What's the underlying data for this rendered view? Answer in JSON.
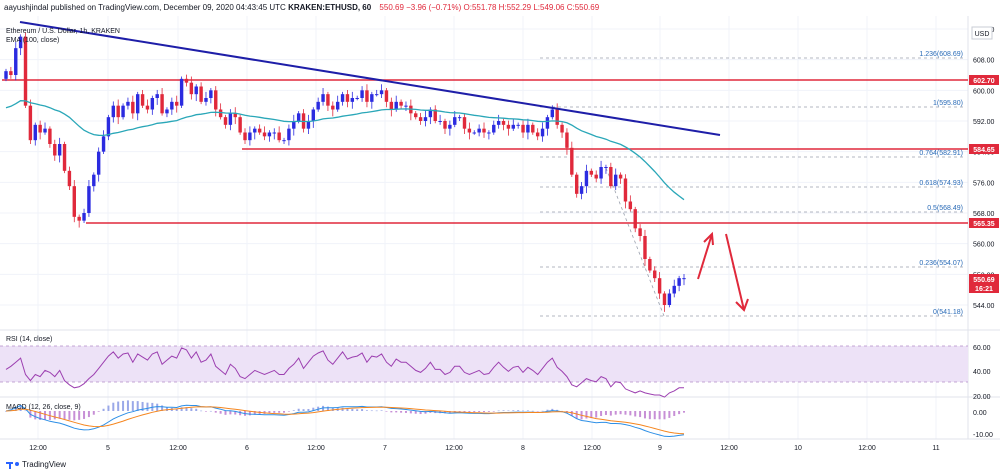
{
  "header": {
    "author": "aayushjindal",
    "published": "published on TradingView.com, December 09, 2020 04:43:45 UTC",
    "symbol": "KRAKEN:ETHUSD, 60",
    "price": "550.69",
    "change": "−3.96 (−0.71%)",
    "ohlc": "O:551.78 H:552.29 L:549.06 C:550.69"
  },
  "legend": {
    "title": "Ethereum / U.S. Dollar, 1h, KRAKEN",
    "ema": "EMA (100, close)"
  },
  "price_axis": {
    "currency": "USD",
    "ticks": [
      "616.00",
      "608.00",
      "600.00",
      "592.00",
      "584.00",
      "576.00",
      "568.00",
      "560.00",
      "552.00",
      "544.00"
    ],
    "tag_602": "602.70",
    "tag_584": "584.65",
    "tag_565": "565.35",
    "tag_last": "550.69",
    "tag_timer": "16:21"
  },
  "fib": {
    "l1236": "1.236(608.69)",
    "l1": "1(595.80)",
    "l0764": "0.764(582.91)",
    "l0618": "0.618(574.93)",
    "l05": "0.5(568.49)",
    "l0236": "0.236(554.07)",
    "l0": "0(541.18)"
  },
  "rsi": {
    "label": "RSI (14, close)",
    "ticks": [
      "60.00",
      "40.00",
      "20.00"
    ]
  },
  "macd": {
    "label": "MACD (12, 26, close, 9)",
    "ticks": [
      "0.00",
      "-10.00"
    ]
  },
  "time_axis": {
    "labels": [
      "12:00",
      "5",
      "12:00",
      "6",
      "12:00",
      "7",
      "12:00",
      "8",
      "12:00",
      "9",
      "12:00",
      "10",
      "12:00",
      "11"
    ]
  },
  "footer": {
    "brand": "TradingView"
  },
  "colors": {
    "up": "#2b2be0",
    "down": "#e0293b",
    "ema": "#2aa7b8",
    "trend": "#1e1ea8",
    "hline": "#e0293b",
    "rsi": "#9c3fb0",
    "rsi_band": "#ede2f7",
    "macd_line": "#2d8fe6",
    "signal": "#f5861f",
    "hist_up": "#9aa8e8",
    "hist_dn": "#c78fd6"
  },
  "chart_data": {
    "type": "candlestick",
    "title": "Ethereum / U.S. Dollar, 1h, KRAKEN",
    "ylim": [
      536,
      620
    ],
    "annotated_levels": [
      602.7,
      584.65,
      565.35
    ],
    "fib_levels": {
      "1.236": 608.69,
      "1": 595.8,
      "0.764": 582.91,
      "0.618": 574.93,
      "0.5": 568.49,
      "0.236": 554.07,
      "0": 541.18
    },
    "last_price": 550.69,
    "close_path": [
      605,
      604,
      611,
      614,
      596,
      587,
      591,
      589,
      590,
      586,
      583,
      586,
      579,
      575,
      567,
      566,
      568,
      575,
      578,
      584,
      588,
      593,
      596,
      593,
      596,
      597,
      594,
      599,
      596,
      595,
      598,
      599,
      594,
      595,
      597,
      596,
      603,
      602,
      599,
      601,
      597,
      598,
      600,
      595,
      593,
      591,
      594,
      593,
      589,
      587,
      589,
      590,
      589,
      588,
      589,
      589,
      587,
      587,
      590,
      592,
      594,
      590,
      592,
      595,
      597,
      599,
      596,
      595,
      597,
      599,
      597,
      598,
      598,
      600,
      597,
      599,
      599,
      600,
      597,
      595,
      597,
      596,
      596,
      594,
      593,
      592,
      593,
      595,
      592,
      592,
      590,
      591,
      593,
      593,
      590,
      589,
      589,
      590,
      589,
      589,
      591,
      592,
      591,
      590,
      591,
      591,
      589,
      591,
      589,
      588,
      590,
      593,
      595,
      591,
      589,
      585,
      578,
      573,
      575,
      579,
      578,
      577,
      580,
      580,
      575,
      578,
      577,
      571,
      569,
      564,
      562,
      556,
      553,
      551,
      547,
      544,
      547,
      549,
      551,
      551
    ],
    "rsi_path": [
      45,
      48,
      52,
      56,
      40,
      34,
      40,
      38,
      44,
      42,
      38,
      44,
      34,
      30,
      27,
      28,
      31,
      36,
      40,
      46,
      52,
      58,
      62,
      56,
      60,
      61,
      52,
      60,
      57,
      54,
      60,
      62,
      50,
      54,
      58,
      56,
      66,
      64,
      56,
      62,
      52,
      54,
      60,
      48,
      44,
      40,
      50,
      46,
      38,
      36,
      40,
      44,
      42,
      40,
      42,
      44,
      40,
      40,
      46,
      50,
      56,
      46,
      52,
      58,
      61,
      63,
      54,
      50,
      56,
      62,
      55,
      57,
      58,
      61,
      52,
      58,
      57,
      60,
      52,
      48,
      55,
      52,
      52,
      48,
      44,
      42,
      46,
      52,
      45,
      45,
      40,
      42,
      48,
      48,
      42,
      40,
      42,
      44,
      40,
      41,
      47,
      52,
      47,
      43,
      47,
      48,
      42,
      47,
      44,
      40,
      46,
      52,
      56,
      47,
      43,
      38,
      30,
      28,
      32,
      36,
      34,
      33,
      38,
      36,
      28,
      33,
      32,
      26,
      24,
      22,
      24,
      22,
      21,
      20,
      20,
      18,
      22,
      24,
      27,
      27
    ],
    "macd_path": [
      0,
      0.5,
      1.5,
      2.5,
      1,
      -1.5,
      -2.6,
      -3.4,
      -4,
      -4.7,
      -5.1,
      -5.5,
      -6.2,
      -7,
      -7.8,
      -8.3,
      -8.6,
      -8.5,
      -8.1,
      -7.3,
      -6.3,
      -5,
      -3.6,
      -2.6,
      -1.7,
      -0.8,
      -0.3,
      0.4,
      0.8,
      1.2,
      1.7,
      2,
      1.9,
      1.7,
      1.7,
      1.6,
      2.3,
      2.6,
      2.5,
      2.5,
      2,
      1.8,
      1.9,
      1.3,
      0.8,
      0.2,
      0.1,
      -0.2,
      -0.7,
      -1.2,
      -1.4,
      -1.5,
      -1.6,
      -1.7,
      -1.7,
      -1.7,
      -1.8,
      -1.9,
      -1.6,
      -1.2,
      -0.6,
      -0.6,
      -0.4,
      0.2,
      0.8,
      1.4,
      1.5,
      1.5,
      1.6,
      1.9,
      1.9,
      1.9,
      1.9,
      2.1,
      1.8,
      1.8,
      1.8,
      1.9,
      1.6,
      1.2,
      1.1,
      0.9,
      0.7,
      0.4,
      0.1,
      -0.2,
      -0.3,
      -0.2,
      -0.4,
      -0.6,
      -0.8,
      -1,
      -0.9,
      -0.8,
      -0.9,
      -1,
      -1.1,
      -1.1,
      -1.2,
      -1.2,
      -1,
      -0.8,
      -0.7,
      -0.7,
      -0.6,
      -0.5,
      -0.6,
      -0.5,
      -0.6,
      -0.7,
      -0.6,
      -0.2,
      0.2,
      0,
      -0.3,
      -1,
      -2.2,
      -3.5,
      -4.3,
      -4.6,
      -5,
      -5.3,
      -5.2,
      -5.2,
      -5.7,
      -5.7,
      -5.8,
      -6.2,
      -6.7,
      -7.4,
      -8,
      -8.9,
      -9.7,
      -10.3,
      -10.9,
      -11.5,
      -11.6,
      -11.4,
      -11.1,
      -10.8
    ]
  }
}
